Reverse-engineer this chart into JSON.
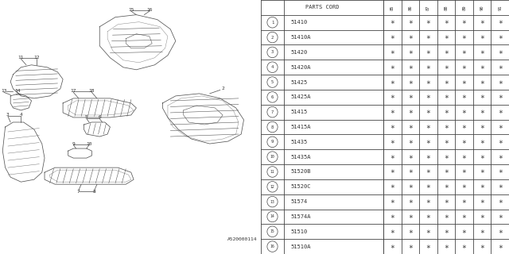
{
  "title": "A520000114",
  "parts_cord_header": "PARTS CORD",
  "columns": [
    "85",
    "86",
    "87",
    "88",
    "89",
    "90",
    "91"
  ],
  "rows": [
    {
      "num": 1,
      "code": "51410"
    },
    {
      "num": 2,
      "code": "51410A"
    },
    {
      "num": 3,
      "code": "51420"
    },
    {
      "num": 4,
      "code": "51420A"
    },
    {
      "num": 5,
      "code": "51425"
    },
    {
      "num": 6,
      "code": "51425A"
    },
    {
      "num": 7,
      "code": "51415"
    },
    {
      "num": 8,
      "code": "51415A"
    },
    {
      "num": 9,
      "code": "51435"
    },
    {
      "num": 10,
      "code": "51435A"
    },
    {
      "num": 11,
      "code": "51520B"
    },
    {
      "num": 12,
      "code": "51520C"
    },
    {
      "num": 13,
      "code": "51574"
    },
    {
      "num": 14,
      "code": "51574A"
    },
    {
      "num": 15,
      "code": "51510"
    },
    {
      "num": 16,
      "code": "51510A"
    }
  ],
  "bg_color": "#ffffff",
  "line_color": "#555555",
  "text_color": "#333333"
}
